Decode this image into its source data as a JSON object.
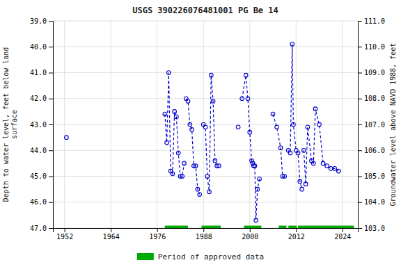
{
  "chart_data": {
    "type": "line",
    "title": "USGS 390226076481001 PG Be  14",
    "y_label": "Depth to water level, feet below land\nsurface",
    "y2_label": "Groundwater level above NAVD 1988, feet",
    "xlim": [
      1949,
      2028
    ],
    "xticks": [
      1952,
      1964,
      1976,
      1988,
      2000,
      2012,
      2024
    ],
    "ylim": [
      47.0,
      39.0
    ],
    "yticks": [
      {
        "value": 39.0,
        "label": "39.0"
      },
      {
        "value": 40.0,
        "label": "40.0"
      },
      {
        "value": 41.0,
        "label": "41.0"
      },
      {
        "value": 42.0,
        "label": "42.0"
      },
      {
        "value": 43.0,
        "label": "43.0"
      },
      {
        "value": 44.0,
        "label": "44.0"
      },
      {
        "value": 45.0,
        "label": "45.0"
      },
      {
        "value": 46.0,
        "label": "46.0"
      },
      {
        "value": 47.0,
        "label": "47.0"
      }
    ],
    "y2lim": [
      103.0,
      111.0
    ],
    "y2ticks": [
      {
        "value": 103.0,
        "label": "103.0"
      },
      {
        "value": 104.0,
        "label": "104.0"
      },
      {
        "value": 105.0,
        "label": "105.0"
      },
      {
        "value": 106.0,
        "label": "106.0"
      },
      {
        "value": 107.0,
        "label": "107.0"
      },
      {
        "value": 108.0,
        "label": "108.0"
      },
      {
        "value": 109.0,
        "label": "109.0"
      },
      {
        "value": 110.0,
        "label": "110.0"
      },
      {
        "value": 111.0,
        "label": "111.0"
      }
    ],
    "grid": true,
    "legend": "bottom",
    "series": [
      {
        "type": "line",
        "color": "#0000cc",
        "marker": "open-circle",
        "line_style": "dashed",
        "x": [
          1952.5
        ],
        "values": [
          43.5
        ]
      },
      {
        "type": "line",
        "color": "#0000cc",
        "marker": "open-circle",
        "line_style": "dashed",
        "x": [
          1978.0,
          1978.5,
          1979.0,
          1979.5,
          1980.0,
          1980.5,
          1981.0,
          1981.5,
          1982.0,
          1982.5,
          1983.0
        ],
        "values": [
          42.6,
          43.7,
          41.0,
          44.8,
          44.9,
          42.5,
          42.7,
          44.1,
          45.0,
          45.0,
          44.5
        ]
      },
      {
        "type": "line",
        "color": "#0000cc",
        "marker": "open-circle",
        "line_style": "dashed",
        "x": [
          1983.5,
          1984.0,
          1984.5,
          1985.0,
          1985.5,
          1986.0,
          1986.5,
          1987.0
        ],
        "values": [
          42.0,
          42.1,
          43.0,
          43.2,
          44.6,
          44.6,
          45.5,
          45.7
        ]
      },
      {
        "type": "line",
        "color": "#0000cc",
        "marker": "open-circle",
        "line_style": "dashed",
        "x": [
          1988.0,
          1988.5,
          1989.0,
          1989.5,
          1990.0,
          1990.5,
          1991.0,
          1991.5,
          1992.0
        ],
        "values": [
          43.0,
          43.1,
          45.0,
          45.6,
          41.1,
          42.1,
          44.4,
          44.6,
          44.6
        ]
      },
      {
        "type": "line",
        "color": "#0000cc",
        "marker": "open-circle",
        "line_style": "dashed",
        "x": [
          1997.0
        ],
        "values": [
          43.1
        ]
      },
      {
        "type": "line",
        "color": "#0000cc",
        "marker": "open-circle",
        "line_style": "dashed",
        "x": [
          1998.0,
          1999.0,
          1999.5,
          2000.0,
          2000.5,
          2000.8,
          2001.0,
          2001.3,
          2001.6,
          2002.0,
          2002.5
        ],
        "values": [
          42.0,
          41.1,
          42.0,
          43.3,
          44.4,
          44.5,
          44.6,
          44.6,
          46.7,
          45.5,
          45.1
        ]
      },
      {
        "type": "line",
        "color": "#0000cc",
        "marker": "open-circle",
        "line_style": "dashed",
        "x": [
          2006.0,
          2007.0,
          2008.0,
          2008.5,
          2009.0
        ],
        "values": [
          42.6,
          43.1,
          43.9,
          45.0,
          45.0
        ]
      },
      {
        "type": "line",
        "color": "#0000cc",
        "marker": "open-circle",
        "line_style": "dashed",
        "x": [
          2010.0,
          2010.5,
          2011.0,
          2011.3,
          2012.0,
          2012.5,
          2013.0,
          2013.5
        ],
        "values": [
          44.0,
          44.1,
          39.9,
          43.0,
          44.0,
          44.1,
          45.2,
          45.5
        ]
      },
      {
        "type": "line",
        "color": "#0000cc",
        "marker": "open-circle",
        "line_style": "dashed",
        "x": [
          2014.0,
          2014.5,
          2015.0,
          2016.0,
          2016.5,
          2017.0,
          2018.0,
          2019.0,
          2020.0,
          2021.0,
          2022.0,
          2023.0
        ],
        "values": [
          44.0,
          45.3,
          43.1,
          44.4,
          44.5,
          42.4,
          43.0,
          44.5,
          44.6,
          44.7,
          44.7,
          44.8
        ]
      },
      {
        "name": "Period of approved data",
        "type": "range",
        "color": "#00aa00",
        "x_start": [
          1978.0,
          1987.5,
          1998.5,
          2007.5,
          2010.0,
          2012.5
        ],
        "x_end": [
          1984.0,
          1992.5,
          2003.0,
          2009.5,
          2012.2,
          2027.0
        ],
        "values": [
          47.0,
          47.0,
          47.0,
          47.0,
          47.0,
          47.0
        ]
      }
    ]
  }
}
